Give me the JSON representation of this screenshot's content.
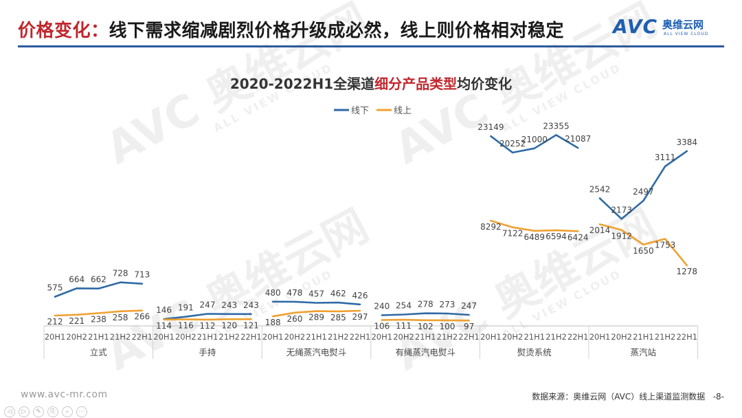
{
  "header": {
    "title_highlight": "价格变化：",
    "title_rest": "线下需求缩减剧烈价格升级成必然，线上则价格相对稳定",
    "logo_mark": "AVC",
    "logo_cn": "奥维云网",
    "logo_en": "ALL VIEW CLOUD"
  },
  "footer": {
    "website": "www.avc-mr.com",
    "source": "数据来源：奥维云网（AVC）线上渠道监测数据",
    "page_number": "-8-"
  },
  "toolbar": {
    "buttons": [
      "◁",
      "▷",
      "✎",
      "⎘",
      "⌕",
      "⋯"
    ]
  },
  "colors": {
    "offline": "#2e6aa5",
    "online": "#f0a030",
    "accent": "#c0272d",
    "rule": "#2b5b9c"
  },
  "chart_data": {
    "type": "line",
    "title_prefix": "2020-2022H1全渠道",
    "title_highlight": "细分产品类型",
    "title_suffix": "均价变化",
    "legend": [
      "线下",
      "线上"
    ],
    "legend_position": "top",
    "x_sub": [
      "20H1",
      "20H2",
      "21H1",
      "21H2",
      "22H1"
    ],
    "groups": [
      {
        "name": "立式",
        "offline": [
          575,
          664,
          662,
          728,
          713
        ],
        "online": [
          212,
          221,
          238,
          258,
          266
        ]
      },
      {
        "name": "手持",
        "offline": [
          146,
          191,
          247,
          243,
          243
        ],
        "online": [
          114,
          116,
          112,
          120,
          121
        ]
      },
      {
        "name": "无绳蒸汽电熨斗",
        "offline": [
          480,
          478,
          457,
          462,
          426
        ],
        "online": [
          188,
          260,
          289,
          285,
          297
        ]
      },
      {
        "name": "有绳蒸汽电熨斗",
        "offline": [
          240,
          254,
          278,
          273,
          247
        ],
        "online": [
          106,
          111,
          102,
          100,
          97
        ]
      },
      {
        "name": "熨烫系统",
        "offline": [
          23149,
          20252,
          21000,
          23355,
          21087
        ],
        "online": [
          8292,
          7122,
          6489,
          6594,
          6424
        ]
      },
      {
        "name": "蒸汽站",
        "offline": [
          2542,
          2173,
          2497,
          3111,
          3384
        ],
        "online": [
          2014,
          1912,
          1650,
          1753,
          1278
        ]
      }
    ]
  }
}
